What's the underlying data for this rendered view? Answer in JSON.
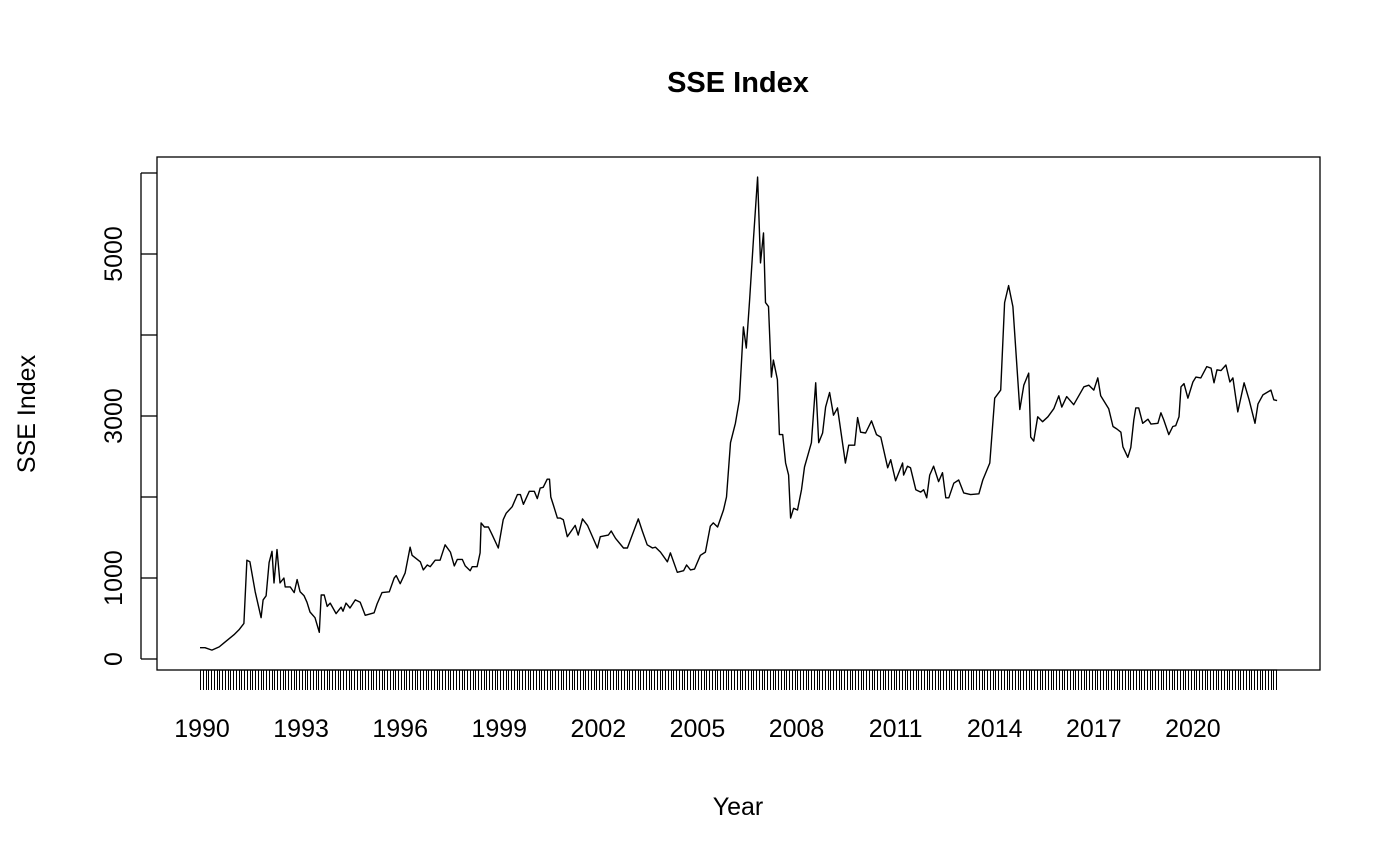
{
  "chart_data": {
    "type": "line",
    "title": "SSE Index",
    "xlabel": "Year",
    "ylabel": "SSE Index",
    "xlim": [
      1989.94,
      2022.55
    ],
    "ylim": [
      0,
      6000
    ],
    "x_tick_labels": [
      "1990",
      "1993",
      "1996",
      "1999",
      "2002",
      "2005",
      "2008",
      "2011",
      "2014",
      "2017",
      "2020"
    ],
    "x_ticks": [
      1990,
      1993,
      1996,
      1999,
      2002,
      2005,
      2008,
      2011,
      2014,
      2017,
      2020
    ],
    "y_ticks": [
      0,
      1000,
      2000,
      3000,
      4000,
      5000,
      6000
    ],
    "y_tick_labels": [
      "0",
      "1000",
      "",
      "3000",
      "",
      "5000",
      ""
    ],
    "grid": false,
    "legend": "none",
    "color": "#000000",
    "series": [
      {
        "name": "SSE Index",
        "x": [
          1989.94,
          1990.09,
          1990.3,
          1990.52,
          1990.67,
          1990.97,
          1991.12,
          1991.27,
          1991.3,
          1991.36,
          1991.45,
          1991.61,
          1991.79,
          1991.85,
          1991.94,
          1992.03,
          1992.12,
          1992.18,
          1992.27,
          1992.36,
          1992.48,
          1992.52,
          1992.67,
          1992.79,
          1992.88,
          1992.97,
          1993.09,
          1993.18,
          1993.27,
          1993.42,
          1993.55,
          1993.61,
          1993.7,
          1993.79,
          1993.88,
          1994.06,
          1994.21,
          1994.27,
          1994.36,
          1994.48,
          1994.64,
          1994.79,
          1994.94,
          1995.21,
          1995.3,
          1995.45,
          1995.67,
          1995.82,
          1995.88,
          1996.0,
          1996.15,
          1996.3,
          1996.36,
          1996.61,
          1996.7,
          1996.82,
          1996.91,
          1997.06,
          1997.21,
          1997.36,
          1997.52,
          1997.64,
          1997.73,
          1997.88,
          1997.97,
          1998.12,
          1998.18,
          1998.33,
          1998.42,
          1998.45,
          1998.55,
          1998.67,
          1998.79,
          1998.97,
          1999.12,
          1999.21,
          1999.39,
          1999.55,
          1999.64,
          1999.73,
          1999.91,
          2000.06,
          2000.15,
          2000.24,
          2000.33,
          2000.45,
          2000.52,
          2000.56,
          2000.64,
          2000.76,
          2000.85,
          2000.94,
          2001.06,
          2001.3,
          2001.39,
          2001.52,
          2001.67,
          2001.97,
          2002.06,
          2002.3,
          2002.39,
          2002.52,
          2002.76,
          2002.88,
          2003.21,
          2003.33,
          2003.48,
          2003.64,
          2003.73,
          2003.88,
          2004.09,
          2004.18,
          2004.39,
          2004.58,
          2004.67,
          2004.79,
          2004.91,
          2005.09,
          2005.24,
          2005.39,
          2005.48,
          2005.61,
          2005.79,
          2005.88,
          2006.0,
          2006.15,
          2006.27,
          2006.39,
          2006.48,
          2006.58,
          2006.7,
          2006.82,
          2006.91,
          2007.0,
          2007.06,
          2007.15,
          2007.24,
          2007.3,
          2007.42,
          2007.48,
          2007.58,
          2007.67,
          2007.76,
          2007.82,
          2007.91,
          2008.03,
          2008.15,
          2008.24,
          2008.36,
          2008.45,
          2008.58,
          2008.67,
          2008.79,
          2008.88,
          2009.0,
          2009.12,
          2009.24,
          2009.48,
          2009.58,
          2009.76,
          2009.85,
          2009.94,
          2010.09,
          2010.27,
          2010.42,
          2010.55,
          2010.76,
          2010.85,
          2011.0,
          2011.21,
          2011.24,
          2011.36,
          2011.45,
          2011.61,
          2011.76,
          2011.85,
          2011.94,
          2012.03,
          2012.15,
          2012.3,
          2012.42,
          2012.52,
          2012.61,
          2012.76,
          2012.91,
          2013.06,
          2013.27,
          2013.52,
          2013.64,
          2013.85,
          2014.0,
          2014.18,
          2014.3,
          2014.42,
          2014.55,
          2014.76,
          2014.88,
          2015.03,
          2015.09,
          2015.18,
          2015.3,
          2015.45,
          2015.61,
          2015.79,
          2015.94,
          2016.03,
          2016.18,
          2016.39,
          2016.7,
          2016.85,
          2017.0,
          2017.12,
          2017.21,
          2017.45,
          2017.58,
          2017.7,
          2017.82,
          2017.88,
          2018.03,
          2018.12,
          2018.21,
          2018.27,
          2018.36,
          2018.48,
          2018.64,
          2018.73,
          2018.94,
          2019.03,
          2019.12,
          2019.27,
          2019.39,
          2019.48,
          2019.58,
          2019.64,
          2019.73,
          2019.85,
          2020.0,
          2020.09,
          2020.24,
          2020.42,
          2020.55,
          2020.64,
          2020.73,
          2020.85,
          2021.0,
          2021.12,
          2021.21,
          2021.36,
          2021.55,
          2021.7,
          2021.88,
          2021.97,
          2022.12,
          2022.36,
          2022.45,
          2022.55
        ],
        "y": [
          140,
          140,
          110,
          150,
          200,
          300,
          360,
          440,
          700,
          1220,
          1200,
          830,
          510,
          730,
          780,
          1190,
          1330,
          940,
          1350,
          940,
          1000,
          890,
          890,
          820,
          980,
          830,
          780,
          700,
          580,
          510,
          330,
          790,
          790,
          650,
          690,
          560,
          640,
          590,
          690,
          630,
          730,
          700,
          540,
          570,
          680,
          820,
          830,
          1000,
          1030,
          930,
          1060,
          1380,
          1280,
          1200,
          1100,
          1160,
          1140,
          1220,
          1220,
          1410,
          1320,
          1150,
          1230,
          1230,
          1150,
          1090,
          1140,
          1140,
          1310,
          1680,
          1630,
          1630,
          1530,
          1370,
          1720,
          1800,
          1880,
          2030,
          2030,
          1910,
          2070,
          2070,
          1980,
          2110,
          2120,
          2220,
          2220,
          2000,
          1900,
          1740,
          1740,
          1720,
          1510,
          1650,
          1530,
          1730,
          1650,
          1370,
          1510,
          1530,
          1580,
          1490,
          1370,
          1370,
          1730,
          1580,
          1410,
          1370,
          1380,
          1320,
          1200,
          1310,
          1070,
          1090,
          1160,
          1100,
          1110,
          1280,
          1320,
          1640,
          1680,
          1630,
          1840,
          2000,
          2670,
          2910,
          3200,
          4100,
          3840,
          4430,
          5210,
          5950,
          4890,
          5260,
          4400,
          4350,
          3480,
          3690,
          3450,
          2770,
          2770,
          2420,
          2270,
          1740,
          1860,
          1840,
          2090,
          2370,
          2540,
          2670,
          3410,
          2670,
          2790,
          3110,
          3290,
          3010,
          3100,
          2420,
          2640,
          2640,
          2980,
          2800,
          2790,
          2940,
          2770,
          2740,
          2360,
          2460,
          2200,
          2420,
          2270,
          2380,
          2360,
          2090,
          2060,
          2090,
          1990,
          2270,
          2380,
          2190,
          2300,
          1990,
          1990,
          2170,
          2210,
          2050,
          2030,
          2040,
          2210,
          2420,
          3220,
          3320,
          4400,
          4610,
          4350,
          3080,
          3380,
          3530,
          2740,
          2690,
          2990,
          2930,
          2990,
          3090,
          3250,
          3110,
          3240,
          3140,
          3360,
          3380,
          3320,
          3470,
          3250,
          3090,
          2870,
          2840,
          2800,
          2620,
          2490,
          2610,
          2950,
          3100,
          3100,
          2910,
          2960,
          2900,
          2910,
          3040,
          2950,
          2770,
          2870,
          2880,
          2990,
          3360,
          3400,
          3220,
          3420,
          3480,
          3470,
          3610,
          3590,
          3410,
          3570,
          3560,
          3630,
          3420,
          3470,
          3050,
          3410,
          3200,
          2910,
          3150,
          3260,
          3320,
          3200,
          3190
        ]
      }
    ]
  }
}
